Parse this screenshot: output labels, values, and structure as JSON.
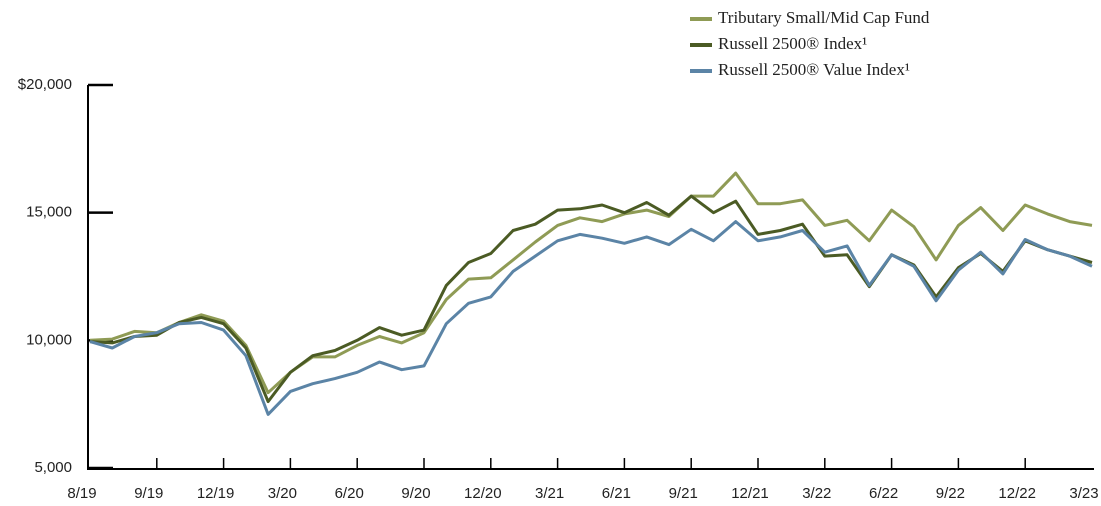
{
  "chart_data": {
    "type": "line",
    "categories": [
      "8/19",
      null,
      null,
      "9/19",
      null,
      null,
      "12/19",
      null,
      null,
      "3/20",
      null,
      null,
      "6/20",
      null,
      null,
      "9/20",
      null,
      null,
      "12/20",
      null,
      null,
      "3/21",
      null,
      null,
      "6/21",
      null,
      null,
      "9/21",
      null,
      null,
      "12/21",
      null,
      null,
      "3/22",
      null,
      null,
      "6/22",
      null,
      null,
      "9/22",
      null,
      null,
      "12/22",
      null,
      null,
      "3/23"
    ],
    "series": [
      {
        "name": "Tributary Small/Mid Cap Fund",
        "color": "#8f9b55",
        "values": [
          10000,
          10050,
          10350,
          10300,
          10700,
          11000,
          10750,
          9800,
          7950,
          8750,
          9350,
          9350,
          9800,
          10150,
          9900,
          10300,
          11600,
          12400,
          12450,
          13150,
          13850,
          14500,
          14800,
          14650,
          14950,
          15100,
          14850,
          15650,
          15650,
          16550,
          15350,
          15350,
          15500,
          14500,
          14700,
          13900,
          15100,
          14450,
          13150,
          14500,
          15200,
          14300,
          15300,
          14950,
          14650,
          14500
        ]
      },
      {
        "name": "Russell 2500® Index¹",
        "color": "#4b5b24",
        "values": [
          9950,
          9900,
          10150,
          10200,
          10700,
          10900,
          10650,
          9700,
          7600,
          8750,
          9400,
          9600,
          10000,
          10500,
          10200,
          10400,
          12150,
          13050,
          13400,
          14300,
          14550,
          15100,
          15150,
          15300,
          15000,
          15400,
          14900,
          15650,
          15000,
          15450,
          14150,
          14300,
          14550,
          13300,
          13350,
          12100,
          13350,
          12950,
          11700,
          12850,
          13400,
          12700,
          13900,
          13550,
          13300,
          13050
        ]
      },
      {
        "name": "Russell 2500® Value Index¹",
        "color": "#5b84a6",
        "values": [
          9950,
          9700,
          10150,
          10300,
          10650,
          10700,
          10400,
          9400,
          7100,
          8000,
          8300,
          8500,
          8750,
          9150,
          8850,
          9000,
          10650,
          11450,
          11700,
          12700,
          13300,
          13900,
          14150,
          14000,
          13800,
          14050,
          13750,
          14350,
          13900,
          14650,
          13900,
          14050,
          14300,
          13450,
          13700,
          12150,
          13350,
          12900,
          11550,
          12750,
          13450,
          12600,
          13950,
          13550,
          13300,
          12900
        ]
      }
    ],
    "ylim": [
      5000,
      20000
    ],
    "yticks": [
      {
        "value": 5000,
        "label": "5,000"
      },
      {
        "value": 10000,
        "label": "10,000"
      },
      {
        "value": 15000,
        "label": "15,000"
      },
      {
        "value": 20000,
        "label": "$20,000"
      }
    ],
    "legend": "top-right"
  }
}
